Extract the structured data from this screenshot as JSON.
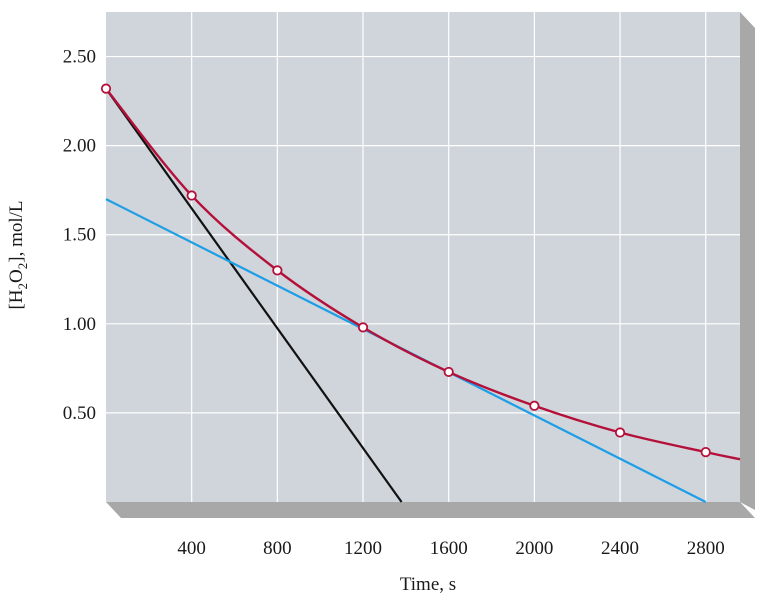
{
  "chart_data": {
    "type": "line",
    "xlabel": "Time, s",
    "ylabel": {
      "prefix": "[H",
      "sub1": "2",
      "mid": "O",
      "sub2": "2",
      "suffix": "], mol/L"
    },
    "xlim": [
      0,
      2960
    ],
    "ylim": [
      0,
      2.75
    ],
    "x_ticks": [
      400,
      800,
      1200,
      1600,
      2000,
      2400,
      2800
    ],
    "x_tick_labels": [
      "400",
      "800",
      "1200",
      "1600",
      "2000",
      "2400",
      "2800"
    ],
    "y_ticks": [
      0.5,
      1.0,
      1.5,
      2.0,
      2.5
    ],
    "y_tick_labels": [
      "0.50",
      "1.00",
      "1.50",
      "2.00",
      "2.50"
    ],
    "grid": true,
    "colors": {
      "plot_bg": "#cfd5db",
      "grid": "#ffffff",
      "frame_side": "#a8a8a8",
      "curve": "#b5103a",
      "tangent_initial": "#111111",
      "tangent_1200": "#1e9ee6"
    },
    "series": [
      {
        "kind": "curve",
        "x": [
          0,
          400,
          800,
          1200,
          1600,
          2000,
          2400,
          2800
        ],
        "y": [
          2.32,
          1.72,
          1.3,
          0.98,
          0.73,
          0.54,
          0.39,
          0.28
        ],
        "extend_to_x": 2960,
        "extend_to_y": 0.24
      },
      {
        "kind": "tangent-initial",
        "x": [
          0,
          1380
        ],
        "y": [
          2.32,
          0.0
        ]
      },
      {
        "kind": "tangent-1200",
        "x": [
          0,
          2800
        ],
        "y": [
          1.7,
          0.0
        ]
      }
    ]
  }
}
